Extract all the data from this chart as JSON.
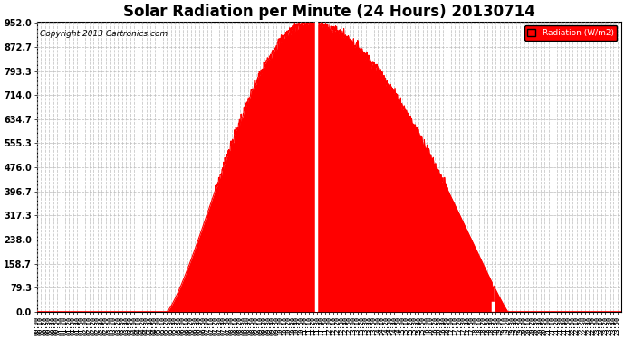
{
  "title": "Solar Radiation per Minute (24 Hours) 20130714",
  "copyright_text": "Copyright 2013 Cartronics.com",
  "legend_label": "Radiation (W/m2)",
  "y_ticks": [
    0.0,
    79.3,
    158.7,
    238.0,
    317.3,
    396.7,
    476.0,
    555.3,
    634.7,
    714.0,
    793.3,
    872.7,
    952.0
  ],
  "y_max": 952.0,
  "y_min": 0.0,
  "fill_color": "#ff0000",
  "grid_color": "#bbbbbb",
  "title_fontsize": 12,
  "total_minutes": 1440,
  "sunrise_minute": 320,
  "sunset_minute": 1160,
  "peak_minute": 668,
  "peak_value": 952.0,
  "white_line1_minute": 688,
  "white_line2_minute": 1123,
  "figwidth": 6.9,
  "figheight": 3.75,
  "dpi": 100
}
